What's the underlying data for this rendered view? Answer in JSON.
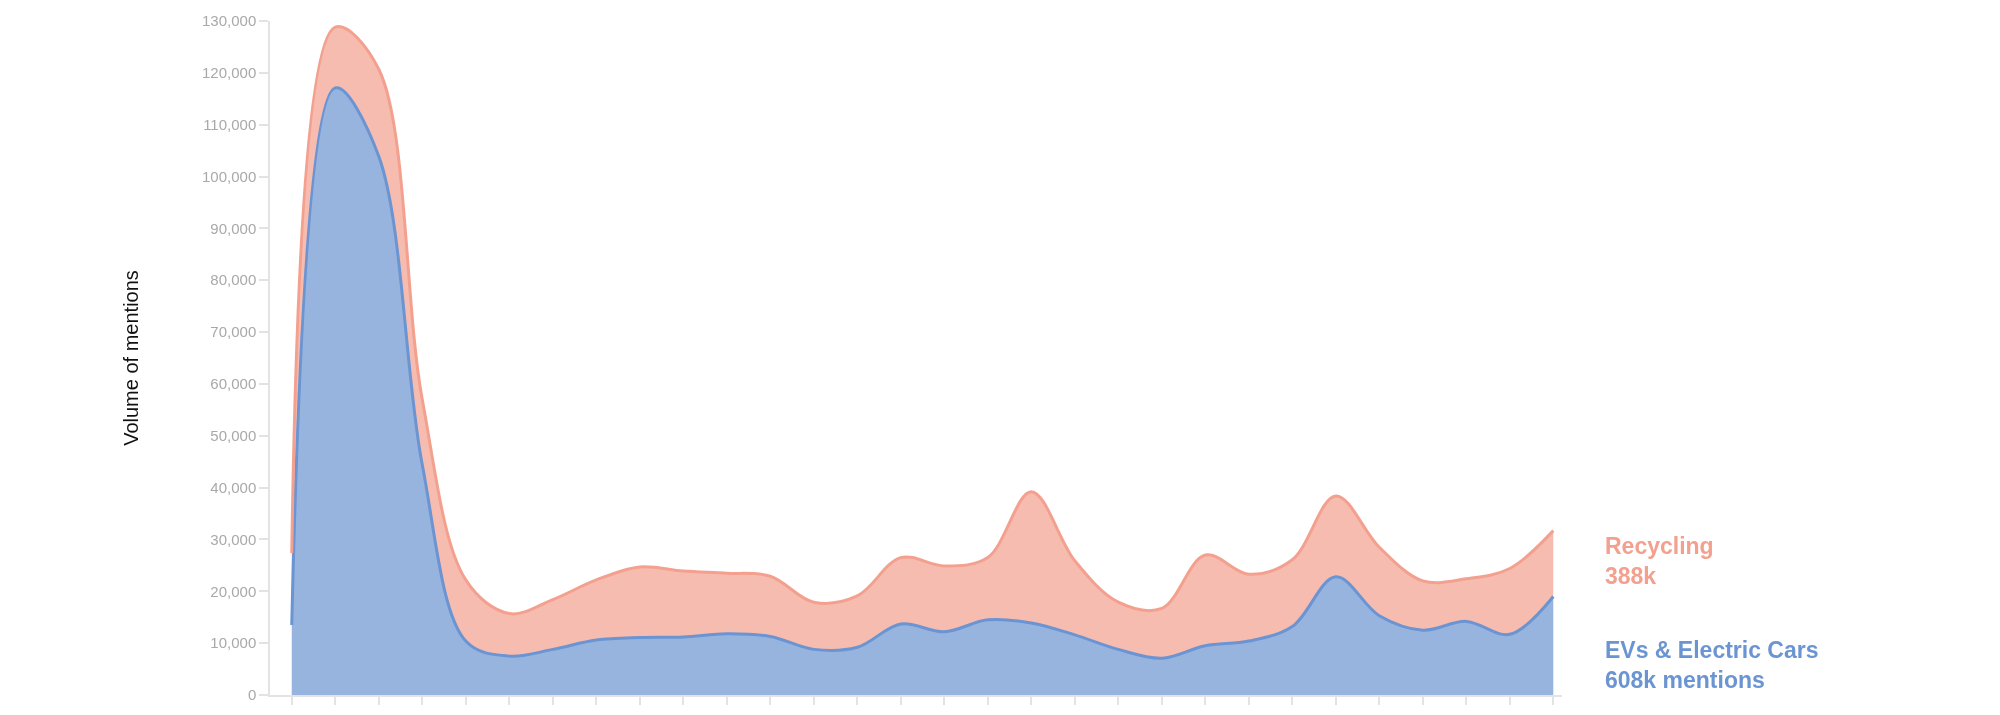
{
  "chart_data": {
    "type": "area",
    "stacked": true,
    "ylabel": "Volume of mentions",
    "categories": [
      null,
      null,
      null,
      null,
      null,
      null,
      null,
      null,
      null,
      null,
      null,
      null,
      null,
      null,
      null,
      null,
      null,
      null,
      null,
      null,
      null,
      null,
      null,
      null,
      null,
      null,
      null,
      null,
      null,
      null
    ],
    "series": [
      {
        "name": "EVs & Electric Cars\n608k mentions",
        "color": "#6b94d2",
        "values": [
          13500,
          117100,
          103900,
          44400,
          10400,
          7500,
          8800,
          10600,
          11100,
          11200,
          11800,
          11300,
          8800,
          9200,
          13700,
          12200,
          14500,
          13900,
          11600,
          8800,
          7100,
          9500,
          10400,
          13200,
          22800,
          15300,
          12500,
          14200,
          11700,
          19000
        ]
      },
      {
        "name": "Recycling\n388k",
        "color": "#f3a08f",
        "values": [
          13900,
          11700,
          16800,
          12600,
          11800,
          8200,
          9600,
          11600,
          13600,
          12700,
          11700,
          11600,
          9100,
          9900,
          12800,
          12700,
          12000,
          25300,
          14300,
          9100,
          9600,
          17500,
          12900,
          12900,
          15600,
          13200,
          9500,
          8200,
          12700,
          12700
        ]
      }
    ],
    "ylim": [
      0,
      130000
    ],
    "yticks": [
      0,
      {
        "value": 10000,
        "label": "10,000"
      },
      {
        "value": 20000,
        "label": "20,000"
      },
      {
        "value": 30000,
        "label": "30,000"
      },
      {
        "value": 40000,
        "label": "40,000"
      },
      {
        "value": 50000,
        "label": "50,000"
      },
      {
        "value": 60000,
        "label": "60,000"
      },
      {
        "value": 70000,
        "label": "70,000"
      },
      {
        "value": 80000,
        "label": "80,000"
      },
      {
        "value": 90000,
        "label": "90,000"
      },
      {
        "value": 100000,
        "label": "100,000"
      },
      {
        "value": 110000,
        "label": "110,000"
      },
      {
        "value": 120000,
        "label": "120,000"
      },
      {
        "value": 130000,
        "label": "130,000"
      }
    ],
    "grid": false,
    "legend": false,
    "marker": "none",
    "line_style": "solid"
  }
}
